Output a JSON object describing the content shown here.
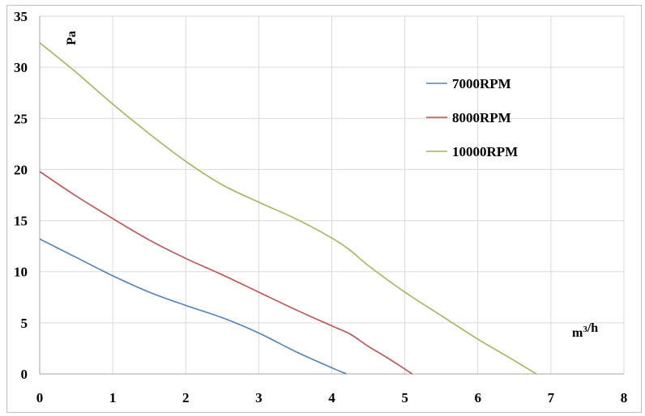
{
  "chart_data": {
    "type": "line",
    "title": "",
    "xlabel": "m³/h",
    "ylabel": "Pa",
    "xlim": [
      0,
      8
    ],
    "ylim": [
      0,
      35
    ],
    "x_ticks": [
      "0",
      "1",
      "2",
      "3",
      "4",
      "5",
      "6",
      "7",
      "8"
    ],
    "y_ticks": [
      "0",
      "5",
      "10",
      "15",
      "20",
      "25",
      "30",
      "35"
    ],
    "grid": true,
    "legend_position": "top-right",
    "series": [
      {
        "name": "7000RPM",
        "color": "#4f81bd",
        "x": [
          0,
          0.5,
          1,
          1.5,
          2,
          2.5,
          3,
          3.5,
          4,
          4.2
        ],
        "y": [
          13.2,
          11.4,
          9.6,
          8.0,
          6.7,
          5.5,
          4.0,
          2.2,
          0.6,
          0
        ]
      },
      {
        "name": "8000RPM",
        "color": "#c0504d",
        "x": [
          0,
          0.5,
          1,
          1.5,
          2,
          2.5,
          3,
          3.5,
          4,
          4.25,
          4.5,
          4.8,
          5.1
        ],
        "y": [
          19.8,
          17.4,
          15.2,
          13.1,
          11.3,
          9.7,
          8.0,
          6.3,
          4.7,
          3.9,
          2.7,
          1.4,
          0
        ]
      },
      {
        "name": "10000RPM",
        "color": "#9bbb59",
        "x": [
          0,
          0.5,
          1,
          1.5,
          2,
          2.5,
          3,
          3.5,
          4,
          4.25,
          4.5,
          5,
          5.5,
          6,
          6.5,
          6.8
        ],
        "y": [
          32.4,
          29.5,
          26.4,
          23.5,
          20.8,
          18.5,
          16.8,
          15.2,
          13.3,
          12.1,
          10.6,
          8.0,
          5.7,
          3.4,
          1.3,
          0
        ]
      }
    ]
  }
}
